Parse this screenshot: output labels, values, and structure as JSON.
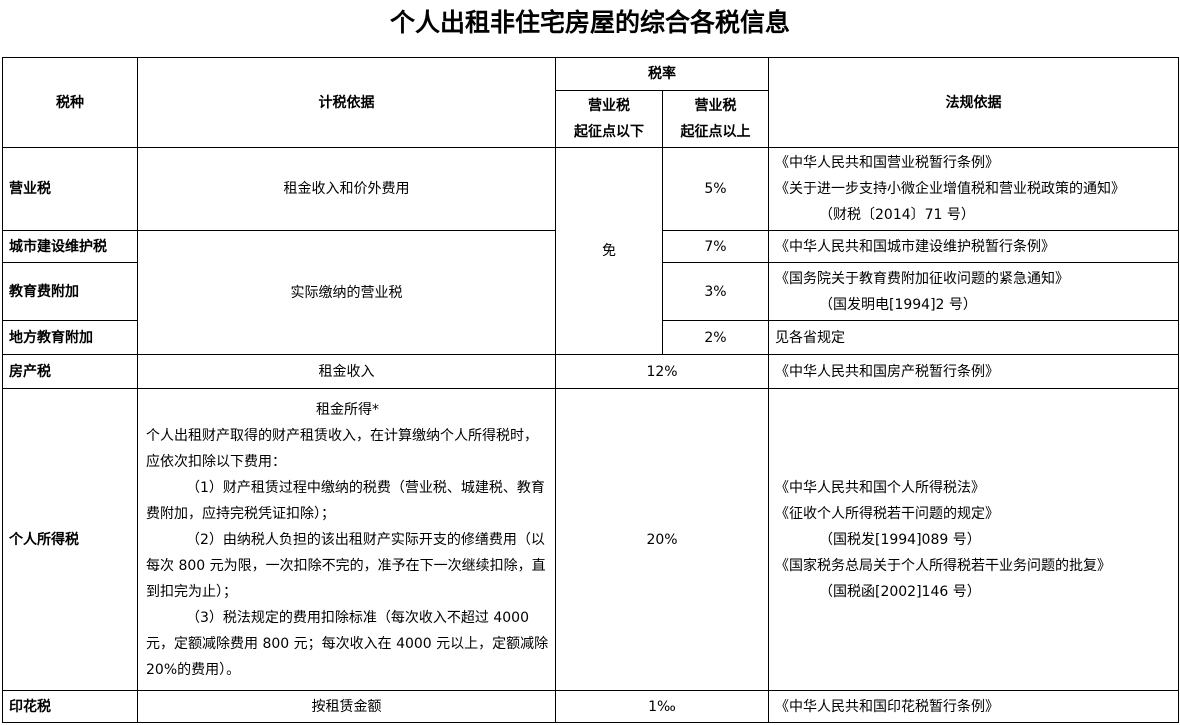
{
  "title": "个人出租非住宅房屋的综合各税信息",
  "header": {
    "tax_type": "税种",
    "basis": "计税依据",
    "rate": "税率",
    "below": [
      "营业税",
      "起征点以下"
    ],
    "above": [
      "营业税",
      "起征点以上"
    ],
    "law": "法规依据"
  },
  "rows": {
    "business": {
      "name": "营业税",
      "basis": "租金收入和价外费用",
      "rate": "5%",
      "law": [
        "《中华人民共和国营业税暂行条例》",
        "《关于进一步支持小微企业增值税和营业税政策的通知》",
        "（财税〔2014〕71 号）"
      ]
    },
    "exempt": "免",
    "urban": {
      "name": "城市建设维护税",
      "rate": "7%",
      "law": [
        "《中华人民共和国城市建设维护税暂行条例》"
      ]
    },
    "shared_basis": "实际缴纳的营业税",
    "edu": {
      "name": "教育费附加",
      "rate": "3%",
      "law": [
        "《国务院关于教育费附加征收问题的紧急通知》",
        "（国发明电[1994]2 号）"
      ]
    },
    "local_edu": {
      "name": "地方教育附加",
      "rate": "2%",
      "law": [
        "见各省规定"
      ]
    },
    "property": {
      "name": "房产税",
      "basis": "租金收入",
      "rate": "12%",
      "law": [
        "《中华人民共和国房产税暂行条例》"
      ]
    },
    "income": {
      "name": "个人所得税",
      "basis_title": "租金所得*",
      "basis_intro": "个人出租财产取得的财产租赁收入，在计算缴纳个人所得税时，应依次扣除以下费用：",
      "basis_items": [
        "（1）财产租赁过程中缴纳的税费（营业税、城建税、教育费附加，应持完税凭证扣除）；",
        "（2）由纳税人负担的该出租财产实际开支的修缮费用（以每次 800 元为限，一次扣除不完的，准予在下一次继续扣除，直到扣完为止）；",
        "（3）税法规定的费用扣除标准（每次收入不超过 4000 元，定额减除费用 800 元；每次收入在 4000 元以上，定额减除 20%的费用）。"
      ],
      "rate": "20%",
      "law": [
        "《中华人民共和国个人所得税法》",
        "《征收个人所得税若干问题的规定》",
        "（国税发[1994]089 号）",
        "《国家税务总局关于个人所得税若干业务问题的批复》",
        "（国税函[2002]146 号）"
      ]
    },
    "stamp": {
      "name": "印花税",
      "basis": "按租赁金额",
      "rate": "1‰",
      "law": [
        "《中华人民共和国印花税暂行条例》"
      ]
    }
  }
}
